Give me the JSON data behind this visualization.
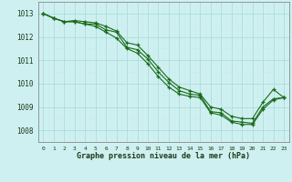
{
  "title": "Graphe pression niveau de la mer (hPa)",
  "background_color": "#cff0f0",
  "grid_major_color": "#aadddd",
  "grid_minor_color": "#c8ecec",
  "line_color": "#1a6b1a",
  "marker_color": "#1a6b1a",
  "xlim": [
    -0.5,
    23.5
  ],
  "ylim": [
    1007.5,
    1013.5
  ],
  "yticks": [
    1008,
    1009,
    1010,
    1011,
    1012,
    1013
  ],
  "xticks": [
    0,
    1,
    2,
    3,
    4,
    5,
    6,
    7,
    8,
    9,
    10,
    11,
    12,
    13,
    14,
    15,
    16,
    17,
    18,
    19,
    20,
    21,
    22,
    23
  ],
  "series": [
    [
      1013.0,
      1012.8,
      1012.65,
      1012.65,
      1012.55,
      1012.55,
      1012.3,
      1012.2,
      1011.55,
      1011.45,
      1011.05,
      1010.5,
      1010.05,
      1009.7,
      1009.55,
      1009.5,
      1008.8,
      1008.75,
      1008.4,
      1008.35,
      1008.3,
      1009.0,
      1009.35,
      1009.4
    ],
    [
      1013.0,
      1012.8,
      1012.65,
      1012.7,
      1012.65,
      1012.6,
      1012.45,
      1012.25,
      1011.75,
      1011.65,
      1011.2,
      1010.7,
      1010.2,
      1009.85,
      1009.7,
      1009.55,
      1009.0,
      1008.9,
      1008.6,
      1008.5,
      1008.5,
      1009.2,
      1009.75,
      1009.4
    ],
    [
      1013.0,
      1012.8,
      1012.65,
      1012.65,
      1012.55,
      1012.45,
      1012.2,
      1011.95,
      1011.5,
      1011.3,
      1010.85,
      1010.3,
      1009.85,
      1009.55,
      1009.45,
      1009.4,
      1008.75,
      1008.65,
      1008.35,
      1008.25,
      1008.25,
      1008.9,
      1009.3,
      1009.4
    ]
  ]
}
